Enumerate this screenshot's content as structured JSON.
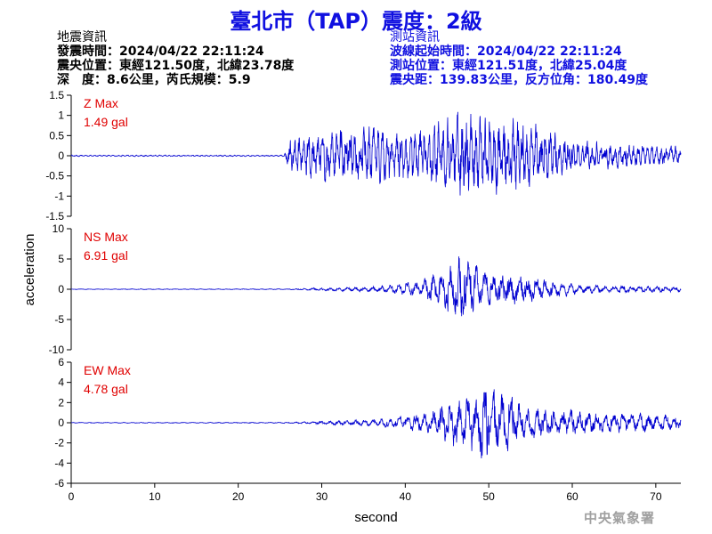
{
  "title": "臺北市（TAP）震度：2級",
  "quake_info": {
    "heading": "地震資訊",
    "time": "發震時間：2024/04/22 22:11:24",
    "epicenter": "震央位置：東經121.50度，北緯23.78度",
    "depth_magnitude": "深　度：8.6公里，芮氏規模：5.9"
  },
  "station_info": {
    "heading": "測站資訊",
    "wave_start": "波線起始時間：2024/04/22 22:11:24",
    "position": "測站位置：東經121.51度，北緯25.04度",
    "distance_azimuth": "震央距：139.83公里，反方位角：180.49度"
  },
  "footer": "中央氣象署",
  "colors": {
    "trace": "#0000d0",
    "title": "#1010e0",
    "max_label": "#e00000",
    "footer": "#a0a0a0"
  },
  "chart_data": {
    "type": "line",
    "xlabel": "second",
    "ylabel": "acceleration",
    "xlim": [
      0,
      73
    ],
    "xticks": [
      0,
      10,
      20,
      30,
      40,
      50,
      60,
      70
    ],
    "xtick_labels": [
      "0",
      "10",
      "20",
      "30",
      "40",
      "50",
      "60",
      "70"
    ],
    "panels": [
      {
        "component": "Z",
        "max_title": "Z Max",
        "max_value": "1.49 gal",
        "ylim": [
          -1.5,
          1.5
        ],
        "yticks": [
          1.5,
          1,
          0.5,
          0,
          -0.5,
          -1,
          -1.5
        ],
        "ytick_labels": [
          "1.5",
          "1",
          "0.5",
          "0",
          "-0.5",
          "-1",
          "-1.5"
        ],
        "envelope": {
          "t": [
            0,
            25.5,
            26,
            28,
            30,
            33,
            36,
            40,
            43,
            46,
            47,
            50,
            53,
            56,
            60,
            65,
            70,
            73
          ],
          "a": [
            0.02,
            0.02,
            0.45,
            0.7,
            0.75,
            0.85,
            0.8,
            0.7,
            0.95,
            1.1,
            1.49,
            1.0,
            1.1,
            0.9,
            0.45,
            0.35,
            0.3,
            0.3
          ]
        }
      },
      {
        "component": "NS",
        "max_title": "NS Max",
        "max_value": "6.91 gal",
        "ylim": [
          -10,
          10
        ],
        "yticks": [
          10,
          5,
          0,
          -5,
          -10
        ],
        "ytick_labels": [
          "10",
          "5",
          "0",
          "-5",
          "-10"
        ],
        "envelope": {
          "t": [
            0,
            26,
            30,
            35,
            38,
            42,
            44,
            45.5,
            46.5,
            48,
            50,
            52,
            55,
            58,
            62,
            66,
            70,
            73
          ],
          "a": [
            0.05,
            0.08,
            0.3,
            0.5,
            0.8,
            1.6,
            3.2,
            4.5,
            6.91,
            4.8,
            3.0,
            3.0,
            2.8,
            1.4,
            0.8,
            0.7,
            0.6,
            0.5
          ]
        }
      },
      {
        "component": "EW",
        "max_title": "EW Max",
        "max_value": "4.78 gal",
        "ylim": [
          -6,
          6
        ],
        "yticks": [
          6,
          4,
          2,
          0,
          -2,
          -4,
          -6
        ],
        "ytick_labels": [
          "6",
          "4",
          "2",
          "0",
          "-2",
          "-4",
          "-6"
        ],
        "envelope": {
          "t": [
            0,
            26,
            30,
            35,
            40,
            43,
            45,
            47,
            48.5,
            49.5,
            51,
            54,
            57,
            60,
            65,
            70,
            73
          ],
          "a": [
            0.04,
            0.06,
            0.2,
            0.35,
            0.7,
            1.3,
            2.4,
            2.8,
            3.5,
            4.78,
            3.4,
            2.2,
            1.6,
            1.4,
            1.1,
            1.0,
            0.8
          ]
        }
      }
    ]
  }
}
